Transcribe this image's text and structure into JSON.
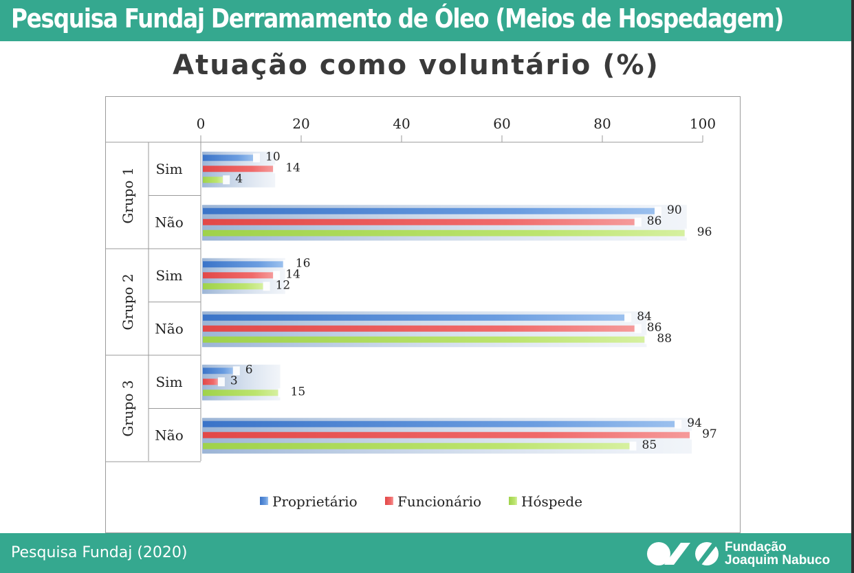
{
  "header": {
    "title": "Pesquisa Fundaj Derramamento de Óleo (Meios de Hospedagem)"
  },
  "footer": {
    "source": "Pesquisa Fundaj (2020)",
    "logo_line1": "Fundação",
    "logo_line2": "Joaquim Nabuco"
  },
  "colors": {
    "header_bg": "#35a88f",
    "proprietario": "#5b8fd6",
    "funcionario": "#ee6464",
    "hospede": "#b8e06a"
  },
  "chart_data": {
    "type": "bar",
    "orientation": "horizontal",
    "title": "Atuação como voluntário (%)",
    "xlim": [
      0,
      100
    ],
    "xticks": [
      "0",
      "20",
      "40",
      "60",
      "80",
      "100"
    ],
    "groups": [
      {
        "label": "Grupo 1",
        "categories": [
          "Sim",
          "Não"
        ]
      },
      {
        "label": "Grupo 2",
        "categories": [
          "Sim",
          "Não"
        ]
      },
      {
        "label": "Grupo 3",
        "categories": [
          "Sim",
          "Não"
        ]
      }
    ],
    "series": [
      {
        "name": "Proprietário",
        "values": [
          10,
          90,
          16,
          84,
          6,
          94
        ]
      },
      {
        "name": "Funcionário",
        "values": [
          14,
          86,
          14,
          86,
          3,
          97
        ]
      },
      {
        "name": "Hóspede",
        "values": [
          4,
          96,
          12,
          88,
          15,
          85
        ]
      }
    ],
    "legend": [
      "Proprietário",
      "Funcionário",
      "Hóspede"
    ],
    "legend_position": "bottom"
  }
}
